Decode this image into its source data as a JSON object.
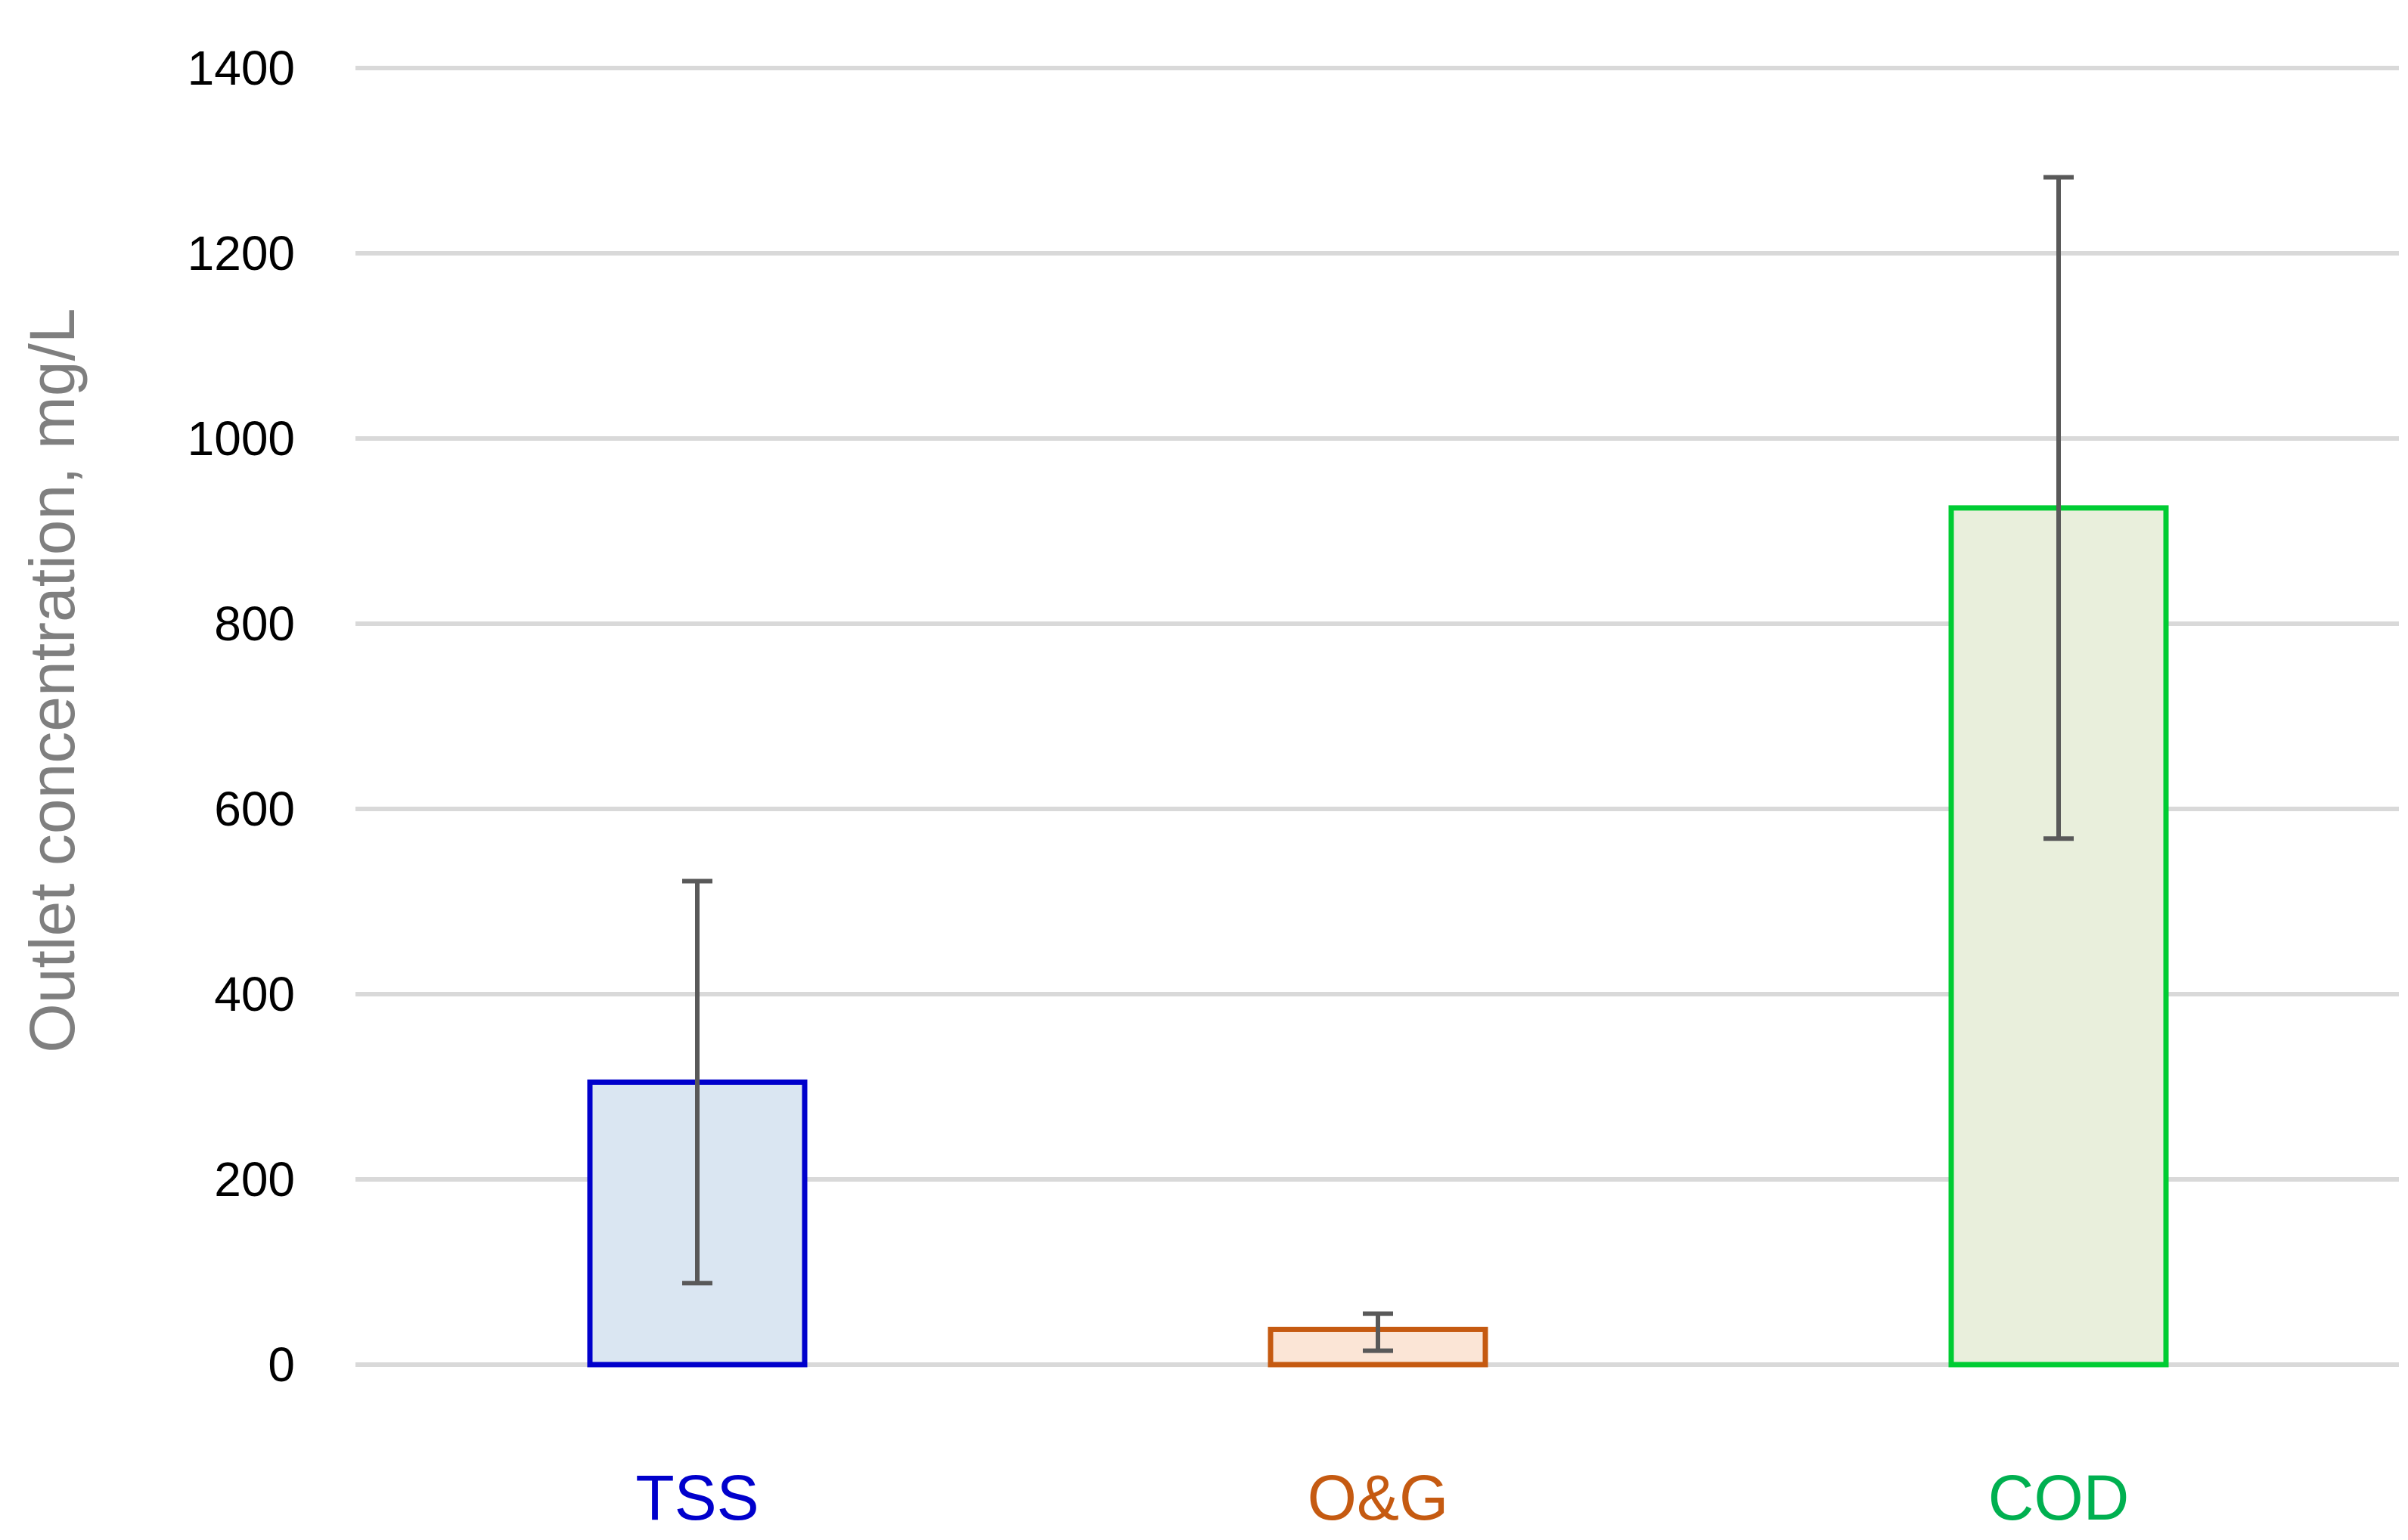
{
  "chart_data": {
    "type": "bar",
    "title": "",
    "xlabel": "",
    "ylabel": "Outlet concentration, mg/L",
    "ylim": [
      0,
      1400
    ],
    "yticks": [
      0,
      200,
      400,
      600,
      800,
      1000,
      1200,
      1400
    ],
    "grid": true,
    "categories": [
      "TSS",
      "O&G",
      "COD"
    ],
    "values": [
      305,
      38,
      925
    ],
    "error_low": [
      88,
      15,
      568
    ],
    "error_high": [
      522,
      55,
      1282
    ],
    "category_colors": [
      "#0000cc",
      "#c55a11",
      "#00b050"
    ],
    "bar_fills": [
      "#dae6f2",
      "#fbe5d6",
      "#e9efdc"
    ],
    "bar_strokes": [
      "#0000cc",
      "#c55a11",
      "#00cc33"
    ]
  }
}
